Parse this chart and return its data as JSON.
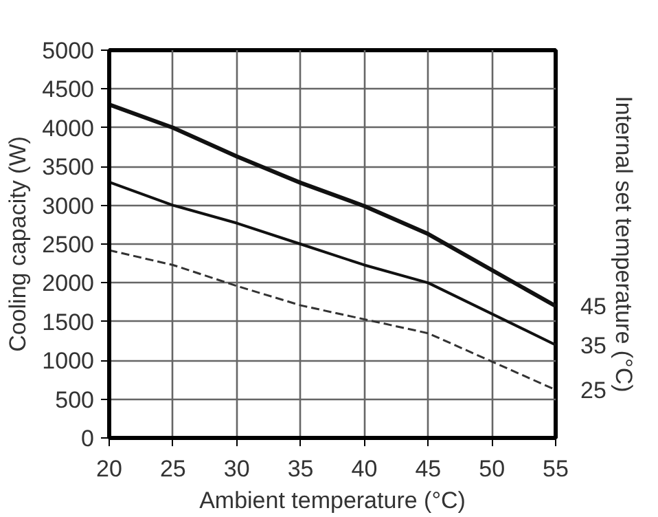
{
  "chart_data": {
    "type": "line",
    "xlabel": "Ambient temperature (°C)",
    "ylabel": "Cooling capacity (W)",
    "y2label": "Internal set temperature (°C)",
    "x": [
      20,
      25,
      30,
      35,
      40,
      45,
      55
    ],
    "series": [
      {
        "name": "45",
        "color": "#111111",
        "line_style": "solid",
        "values": [
          4300,
          4000,
          3630,
          3290,
          2990,
          2630,
          1700
        ]
      },
      {
        "name": "35",
        "color": "#111111",
        "line_style": "solid",
        "values": [
          3300,
          3000,
          2770,
          2500,
          2230,
          2000,
          1200
        ]
      },
      {
        "name": "25",
        "color": "#333333",
        "line_style": "dashed",
        "values": [
          2420,
          2230,
          1960,
          1710,
          1530,
          1350,
          620
        ]
      }
    ],
    "xlim": [
      20,
      55
    ],
    "ylim": [
      0,
      5000
    ],
    "xticks": [
      20,
      25,
      30,
      35,
      40,
      45,
      50,
      55
    ],
    "yticks": [
      0,
      500,
      1000,
      1500,
      2000,
      2500,
      3000,
      3500,
      4000,
      4500,
      5000
    ],
    "grid": true,
    "marker": "none"
  }
}
